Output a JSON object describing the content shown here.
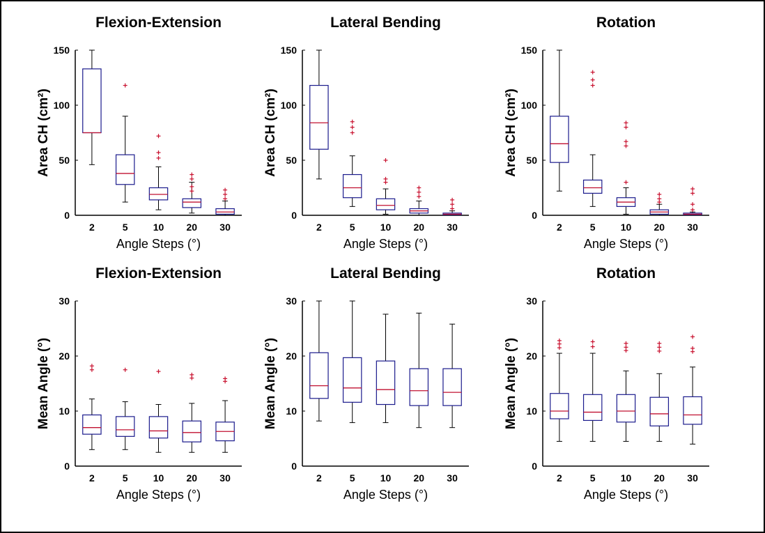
{
  "chart_data": [
    {
      "type": "box",
      "title": "Flexion-Extension",
      "xlabel": "Angle Steps (°)",
      "ylabel": "Area CH (cm²)",
      "ylim": [
        0,
        150
      ],
      "yticks": [
        "0",
        "50",
        "100",
        "150"
      ],
      "categories": [
        "2",
        "5",
        "10",
        "20",
        "30"
      ],
      "boxes": [
        {
          "q1": 75,
          "median": 75,
          "q3": 133,
          "whisker_low": 46,
          "whisker_high": 150,
          "outliers": []
        },
        {
          "q1": 28,
          "median": 38,
          "q3": 55,
          "whisker_low": 12,
          "whisker_high": 90,
          "outliers": [
            118
          ]
        },
        {
          "q1": 14,
          "median": 19,
          "q3": 25,
          "whisker_low": 5,
          "whisker_high": 44,
          "outliers": [
            52,
            57,
            72
          ]
        },
        {
          "q1": 7,
          "median": 12,
          "q3": 15,
          "whisker_low": 2,
          "whisker_high": 30,
          "outliers": [
            22,
            26,
            33,
            37
          ]
        },
        {
          "q1": 1,
          "median": 3,
          "q3": 6,
          "whisker_low": 0,
          "whisker_high": 13,
          "outliers": [
            15,
            19,
            23
          ]
        }
      ]
    },
    {
      "type": "box",
      "title": "Lateral Bending",
      "xlabel": "Angle Steps (°)",
      "ylabel": "Area CH (cm²)",
      "ylim": [
        0,
        150
      ],
      "yticks": [
        "0",
        "50",
        "100",
        "150"
      ],
      "categories": [
        "2",
        "5",
        "10",
        "20",
        "30"
      ],
      "boxes": [
        {
          "q1": 60,
          "median": 84,
          "q3": 118,
          "whisker_low": 33,
          "whisker_high": 150,
          "outliers": []
        },
        {
          "q1": 16,
          "median": 25,
          "q3": 37,
          "whisker_low": 8,
          "whisker_high": 54,
          "outliers": [
            75,
            80,
            85
          ]
        },
        {
          "q1": 5,
          "median": 9,
          "q3": 15,
          "whisker_low": 1,
          "whisker_high": 24,
          "outliers": [
            30,
            33,
            50
          ]
        },
        {
          "q1": 2,
          "median": 4,
          "q3": 6,
          "whisker_low": 0,
          "whisker_high": 13,
          "outliers": [
            17,
            21,
            25
          ]
        },
        {
          "q1": 0.5,
          "median": 1,
          "q3": 2,
          "whisker_low": 0,
          "whisker_high": 4,
          "outliers": [
            6,
            10,
            14
          ]
        }
      ]
    },
    {
      "type": "box",
      "title": "Rotation",
      "xlabel": "Angle Steps (°)",
      "ylabel": "Area CH (cm²)",
      "ylim": [
        0,
        150
      ],
      "yticks": [
        "0",
        "50",
        "100",
        "150"
      ],
      "categories": [
        "2",
        "5",
        "10",
        "20",
        "30"
      ],
      "boxes": [
        {
          "q1": 48,
          "median": 65,
          "q3": 90,
          "whisker_low": 22,
          "whisker_high": 150,
          "outliers": []
        },
        {
          "q1": 20,
          "median": 25,
          "q3": 32,
          "whisker_low": 8,
          "whisker_high": 55,
          "outliers": [
            118,
            123,
            130
          ]
        },
        {
          "q1": 8,
          "median": 12,
          "q3": 16,
          "whisker_low": 1,
          "whisker_high": 25,
          "outliers": [
            30,
            63,
            67,
            80,
            84
          ]
        },
        {
          "q1": 1,
          "median": 3,
          "q3": 5,
          "whisker_low": 0,
          "whisker_high": 10,
          "outliers": [
            12,
            15,
            19
          ]
        },
        {
          "q1": 0.5,
          "median": 1,
          "q3": 2,
          "whisker_low": 0,
          "whisker_high": 3,
          "outliers": [
            5,
            10,
            20,
            24
          ]
        }
      ]
    },
    {
      "type": "box",
      "title": "Flexion-Extension",
      "xlabel": "Angle Steps (°)",
      "ylabel": "Mean Angle (°)",
      "ylim": [
        0,
        30
      ],
      "yticks": [
        "0",
        "10",
        "20",
        "30"
      ],
      "categories": [
        "2",
        "5",
        "10",
        "20",
        "30"
      ],
      "boxes": [
        {
          "q1": 5.8,
          "median": 7,
          "q3": 9.3,
          "whisker_low": 3,
          "whisker_high": 12.2,
          "outliers": [
            17.5,
            18.2
          ]
        },
        {
          "q1": 5.4,
          "median": 6.6,
          "q3": 9,
          "whisker_low": 3,
          "whisker_high": 11.7,
          "outliers": [
            17.5
          ]
        },
        {
          "q1": 5.1,
          "median": 6.4,
          "q3": 9,
          "whisker_low": 2.5,
          "whisker_high": 11.2,
          "outliers": [
            17.2
          ]
        },
        {
          "q1": 4.4,
          "median": 6.1,
          "q3": 8.2,
          "whisker_low": 2.5,
          "whisker_high": 11.4,
          "outliers": [
            16,
            16.6
          ]
        },
        {
          "q1": 4.6,
          "median": 6.3,
          "q3": 8,
          "whisker_low": 2.5,
          "whisker_high": 11.9,
          "outliers": [
            15.4,
            15.9
          ]
        }
      ]
    },
    {
      "type": "box",
      "title": "Lateral Bending",
      "xlabel": "Angle Steps (°)",
      "ylabel": "Mean Angle (°)",
      "ylim": [
        0,
        30
      ],
      "yticks": [
        "0",
        "10",
        "20",
        "30"
      ],
      "categories": [
        "2",
        "5",
        "10",
        "20",
        "30"
      ],
      "boxes": [
        {
          "q1": 12.3,
          "median": 14.6,
          "q3": 20.6,
          "whisker_low": 8.2,
          "whisker_high": 30,
          "outliers": []
        },
        {
          "q1": 11.6,
          "median": 14.2,
          "q3": 19.7,
          "whisker_low": 7.9,
          "whisker_high": 30,
          "outliers": []
        },
        {
          "q1": 11.2,
          "median": 13.9,
          "q3": 19.1,
          "whisker_low": 7.9,
          "whisker_high": 27.6,
          "outliers": []
        },
        {
          "q1": 11,
          "median": 13.7,
          "q3": 17.7,
          "whisker_low": 7,
          "whisker_high": 27.8,
          "outliers": []
        },
        {
          "q1": 11,
          "median": 13.4,
          "q3": 17.7,
          "whisker_low": 7,
          "whisker_high": 25.8,
          "outliers": []
        }
      ]
    },
    {
      "type": "box",
      "title": "Rotation",
      "xlabel": "Angle Steps (°)",
      "ylabel": "Mean Angle (°)",
      "ylim": [
        0,
        30
      ],
      "yticks": [
        "0",
        "10",
        "20",
        "30"
      ],
      "categories": [
        "2",
        "5",
        "10",
        "20",
        "30"
      ],
      "boxes": [
        {
          "q1": 8.6,
          "median": 10,
          "q3": 13.2,
          "whisker_low": 4.5,
          "whisker_high": 20.5,
          "outliers": [
            21.5,
            22.2,
            22.8
          ]
        },
        {
          "q1": 8.3,
          "median": 9.8,
          "q3": 13,
          "whisker_low": 4.5,
          "whisker_high": 20.5,
          "outliers": [
            21.7,
            22.6
          ]
        },
        {
          "q1": 8,
          "median": 10,
          "q3": 13,
          "whisker_low": 4.5,
          "whisker_high": 17.3,
          "outliers": [
            21,
            21.6,
            22.3
          ]
        },
        {
          "q1": 7.3,
          "median": 9.5,
          "q3": 12.5,
          "whisker_low": 4.5,
          "whisker_high": 16.8,
          "outliers": [
            20.9,
            21.6,
            22.3
          ]
        },
        {
          "q1": 7.6,
          "median": 9.3,
          "q3": 12.6,
          "whisker_low": 4,
          "whisker_high": 18,
          "outliers": [
            20.8,
            21.4,
            23.5
          ]
        }
      ]
    }
  ]
}
